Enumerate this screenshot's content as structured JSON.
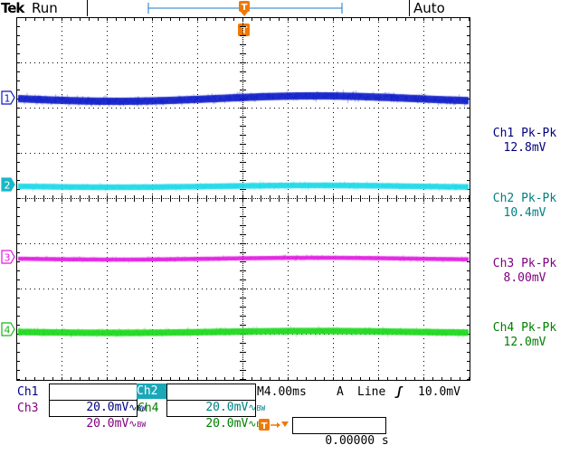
{
  "header": {
    "brand": "Tek",
    "run_state": "Run",
    "acquisition_mode": "Auto"
  },
  "colors": {
    "ch1": "#0a18c8",
    "ch2": "#18d8e8",
    "ch3": "#e018e0",
    "ch4": "#18d818",
    "trigger": "#f07800",
    "ch1_text": "#000080",
    "ch2_text": "#008080",
    "ch3_text": "#800080",
    "ch4_text": "#008000"
  },
  "channels": [
    {
      "id": "1",
      "marker": "1",
      "meas_label": "Ch1 Pk-Pk",
      "meas_value": "12.8mV",
      "scale_label": "Ch1",
      "scale_value": "20.0mV"
    },
    {
      "id": "2",
      "marker": "2",
      "meas_label": "Ch2 Pk-Pk",
      "meas_value": "10.4mV",
      "scale_label": "Ch2",
      "scale_value": "20.0mV"
    },
    {
      "id": "3",
      "marker": "3",
      "meas_label": "Ch3 Pk-Pk",
      "meas_value": "8.00mV",
      "scale_label": "Ch3",
      "scale_value": "20.0mV"
    },
    {
      "id": "4",
      "marker": "4",
      "meas_label": "Ch4 Pk-Pk",
      "meas_value": "12.0mV",
      "scale_label": "Ch4",
      "scale_value": "20.0mV"
    }
  ],
  "coupling_symbol": "∿",
  "bandwidth_limit": "BW",
  "timebase": {
    "label": "M",
    "value": "4.00ms"
  },
  "trigger": {
    "marker": "T",
    "source_label": "A",
    "source": "Line",
    "slope_symbol": "ʃ",
    "level": "10.0mV",
    "position": "0.00000 s"
  }
}
